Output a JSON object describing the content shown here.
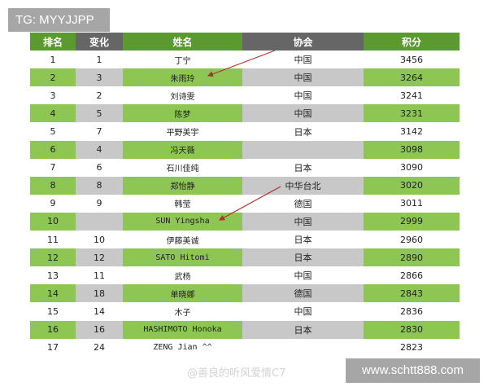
{
  "watermark_top": "TG: MYYJJPP",
  "watermark_bottom": "www.schtt888.com",
  "watermark_overlay": "@善良的听风爱情C7",
  "headers": [
    "排名",
    "变化",
    "姓名",
    "协会",
    "积分"
  ],
  "rows": [
    [
      "1",
      "1",
      "丁宁",
      "中国",
      "3456"
    ],
    [
      "2",
      "3",
      "朱雨玲",
      "中国",
      "3264"
    ],
    [
      "3",
      "2",
      "刘诗雯",
      "中国",
      "3241"
    ],
    [
      "4",
      "5",
      "陈梦",
      "中国",
      "3231"
    ],
    [
      "5",
      "7",
      "平野美宇",
      "日本",
      "3142"
    ],
    [
      "6",
      "4",
      "冯天薇",
      "",
      "3098"
    ],
    [
      "7",
      "6",
      "石川佳纯",
      "日本",
      "3090"
    ],
    [
      "8",
      "8",
      "郑怡静",
      "中华台北",
      "3020"
    ],
    [
      "9",
      "9",
      "韩莹",
      "德国",
      "3011"
    ],
    [
      "10",
      "",
      "SUN Yingsha",
      "中国",
      "2999"
    ],
    [
      "11",
      "10",
      "伊藤美诚",
      "日本",
      "2960"
    ],
    [
      "12",
      "12",
      "SATO Hitomi",
      "日本",
      "2890"
    ],
    [
      "13",
      "11",
      "武杨",
      "中国",
      "2866"
    ],
    [
      "14",
      "18",
      "单晓娜",
      "德国",
      "2843"
    ],
    [
      "15",
      "14",
      "木子",
      "中国",
      "2836"
    ],
    [
      "16",
      "16",
      "HASHIMOTO Honoka",
      "日本",
      "2830"
    ],
    [
      "17",
      "24",
      "ZENG Jian ^^",
      "",
      "2823"
    ]
  ],
  "colors": {
    "header_green": "#5a9a2e",
    "header_gray": "#666666",
    "row_green": "#8dc653",
    "row_gray": "#c8c8c8",
    "arrow": "#b03030"
  }
}
